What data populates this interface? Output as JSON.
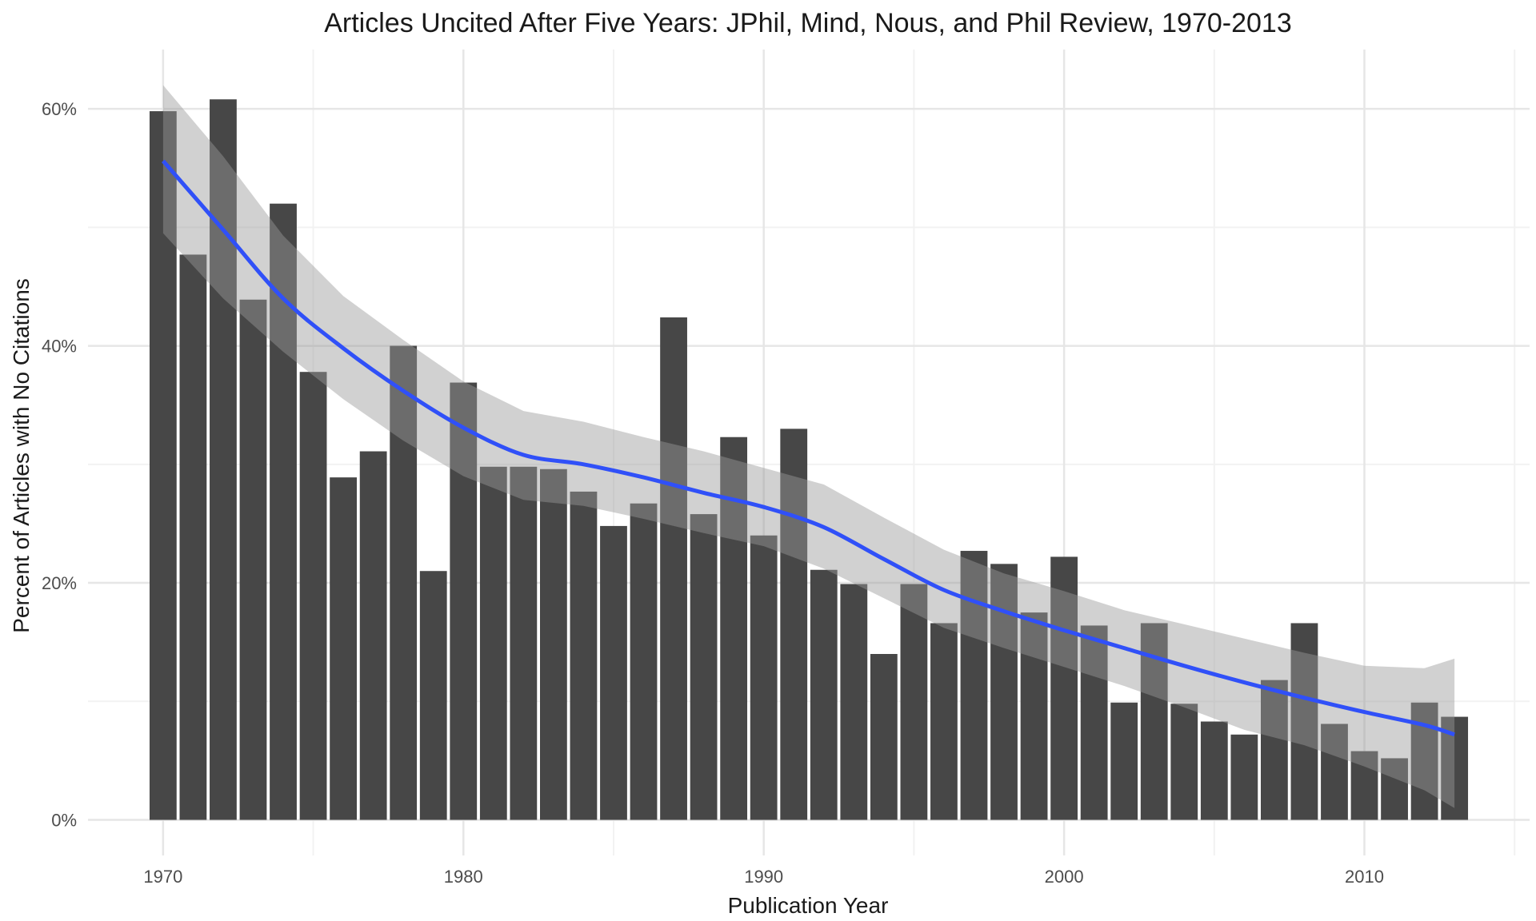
{
  "chart_data": {
    "type": "bar",
    "title": "Articles Uncited After Five Years: JPhil, Mind, Nous, and Phil Review, 1970-2013",
    "xlabel": "Publication Year",
    "ylabel": "Percent of Articles with No Citations",
    "x": [
      1970,
      1971,
      1972,
      1973,
      1974,
      1975,
      1976,
      1977,
      1978,
      1979,
      1980,
      1981,
      1982,
      1983,
      1984,
      1985,
      1986,
      1987,
      1988,
      1989,
      1990,
      1991,
      1992,
      1993,
      1994,
      1995,
      1996,
      1997,
      1998,
      1999,
      2000,
      2001,
      2002,
      2003,
      2004,
      2005,
      2006,
      2007,
      2008,
      2009,
      2010,
      2011,
      2012,
      2013
    ],
    "values": [
      0.598,
      0.477,
      0.608,
      0.439,
      0.52,
      0.378,
      0.289,
      0.311,
      0.4,
      0.21,
      0.369,
      0.298,
      0.298,
      0.296,
      0.277,
      0.248,
      0.267,
      0.424,
      0.258,
      0.323,
      0.24,
      0.33,
      0.211,
      0.199,
      0.14,
      0.199,
      0.166,
      0.227,
      0.216,
      0.175,
      0.222,
      0.164,
      0.099,
      0.166,
      0.098,
      0.083,
      0.072,
      0.118,
      0.166,
      0.081,
      0.058,
      0.052,
      0.099,
      0.087
    ],
    "smooth": {
      "x": [
        1970,
        1972,
        1974,
        1976,
        1978,
        1980,
        1982,
        1984,
        1986,
        1988,
        1990,
        1992,
        1994,
        1996,
        1998,
        2000,
        2002,
        2004,
        2006,
        2008,
        2010,
        2012,
        2013
      ],
      "y": [
        0.556,
        0.498,
        0.44,
        0.398,
        0.362,
        0.331,
        0.308,
        0.3,
        0.289,
        0.276,
        0.264,
        0.247,
        0.22,
        0.194,
        0.176,
        0.16,
        0.145,
        0.13,
        0.116,
        0.103,
        0.091,
        0.08,
        0.072
      ],
      "lower": [
        0.495,
        0.44,
        0.395,
        0.355,
        0.32,
        0.29,
        0.27,
        0.265,
        0.254,
        0.242,
        0.231,
        0.212,
        0.187,
        0.162,
        0.145,
        0.129,
        0.113,
        0.095,
        0.076,
        0.063,
        0.045,
        0.025,
        0.01
      ],
      "upper": [
        0.62,
        0.56,
        0.493,
        0.442,
        0.405,
        0.37,
        0.345,
        0.336,
        0.323,
        0.311,
        0.297,
        0.283,
        0.255,
        0.228,
        0.208,
        0.193,
        0.177,
        0.165,
        0.153,
        0.141,
        0.13,
        0.128,
        0.136
      ]
    },
    "xlim": [
      1967.5,
      2015.5
    ],
    "ylim": [
      -0.03,
      0.65
    ],
    "xticks": [
      1970,
      1980,
      1990,
      2000,
      2010
    ],
    "xtick_labels": [
      "1970",
      "1980",
      "1990",
      "2000",
      "2010"
    ],
    "yticks": [
      0,
      0.2,
      0.4,
      0.6
    ],
    "ytick_labels": [
      "0%",
      "20%",
      "40%",
      "60%"
    ],
    "grid": true,
    "colors": {
      "bar": "#474747",
      "line": "#3050f8",
      "ribbon": "#999999",
      "grid_major": "#e6e6e6",
      "grid_minor": "#f2f2f2"
    }
  }
}
